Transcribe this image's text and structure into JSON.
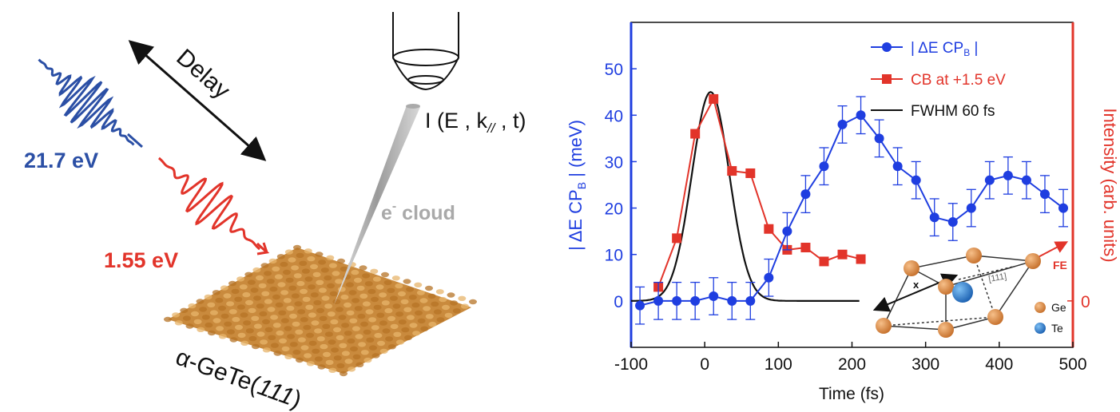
{
  "left_panel": {
    "delay_label": "Delay",
    "probe_energy": "21.7 eV",
    "pump_energy": "1.55 eV",
    "signal_label": "I (E , k//, t)",
    "signal_main": "I (E , k",
    "signal_sub": "//",
    "signal_tail": " , t)",
    "cloud_label": "e⁻ cloud",
    "cloud_main": "e",
    "cloud_sup": "-",
    "cloud_tail": " cloud",
    "sample_label": "α-GeTe(111)",
    "sample_main": "α-GeTe(",
    "sample_italic": "111",
    "sample_tail": ")",
    "colors": {
      "probe": "#2b4fa5",
      "pump": "#e2342a",
      "sample": "#c98a3d",
      "tip": "#bdbdbd"
    }
  },
  "chart_data": {
    "type": "line",
    "title": "",
    "xlabel": "Time (fs)",
    "ylabel_left": "| ΔE CPB | (meV)",
    "ylabel_left_parts": {
      "main": "| ΔE CP",
      "sub": "B",
      "tail": " | (meV)"
    },
    "ylabel_right": "Intensity (arb. units)",
    "xlim": [
      -100,
      500
    ],
    "ylim_left": [
      -10,
      60
    ],
    "xticks": [
      -100,
      0,
      100,
      200,
      300,
      400,
      500
    ],
    "yticks_left": [
      0,
      10,
      20,
      30,
      40,
      50
    ],
    "yticks_right": [
      {
        "label": "0",
        "value_left": 0
      }
    ],
    "legend_position": "top-right",
    "grid": false,
    "series": [
      {
        "name": "| ΔE CPB |",
        "name_parts": {
          "main": "| ΔE CP",
          "sub": "B",
          "tail": " |"
        },
        "color": "#1f3ee0",
        "marker": "circle",
        "axis": "left",
        "x": [
          -88,
          -63,
          -38,
          -13,
          12,
          37,
          62,
          87,
          112,
          137,
          162,
          187,
          212,
          237,
          262,
          287,
          312,
          337,
          362,
          387,
          412,
          437,
          462,
          487
        ],
        "y": [
          -1,
          0,
          0,
          0,
          1,
          0,
          0,
          5,
          15,
          23,
          29,
          38,
          40,
          35,
          29,
          26,
          18,
          17,
          20,
          26,
          27,
          26,
          23,
          20
        ],
        "err": [
          4,
          4,
          4,
          4,
          4,
          4,
          4,
          4,
          4,
          4,
          4,
          4,
          4,
          4,
          4,
          4,
          4,
          4,
          4,
          4,
          4,
          4,
          4,
          4
        ]
      },
      {
        "name": "CB at +1.5 eV",
        "color": "#e2342a",
        "marker": "square",
        "axis": "right",
        "x": [
          -63,
          -38,
          -13,
          12,
          37,
          62,
          87,
          112,
          137,
          162,
          187,
          212
        ],
        "y": [
          3,
          13.5,
          36,
          43.5,
          28,
          27.5,
          15.5,
          11,
          11.5,
          8.5,
          10,
          9
        ]
      },
      {
        "name": "FWHM 60 fs",
        "color": "#111111",
        "marker": "none",
        "axis": "right",
        "gaussian": {
          "center": 8,
          "fwhm": 60,
          "amplitude": 45,
          "baseline": 0,
          "x_range": [
            -100,
            210
          ]
        }
      }
    ]
  },
  "inset": {
    "x_label": "x",
    "direction_label": "[111]",
    "fe_label": "FE",
    "legend": [
      {
        "label": "Ge",
        "color": "#e0904a"
      },
      {
        "label": "Te",
        "color": "#2a82d8"
      }
    ]
  }
}
